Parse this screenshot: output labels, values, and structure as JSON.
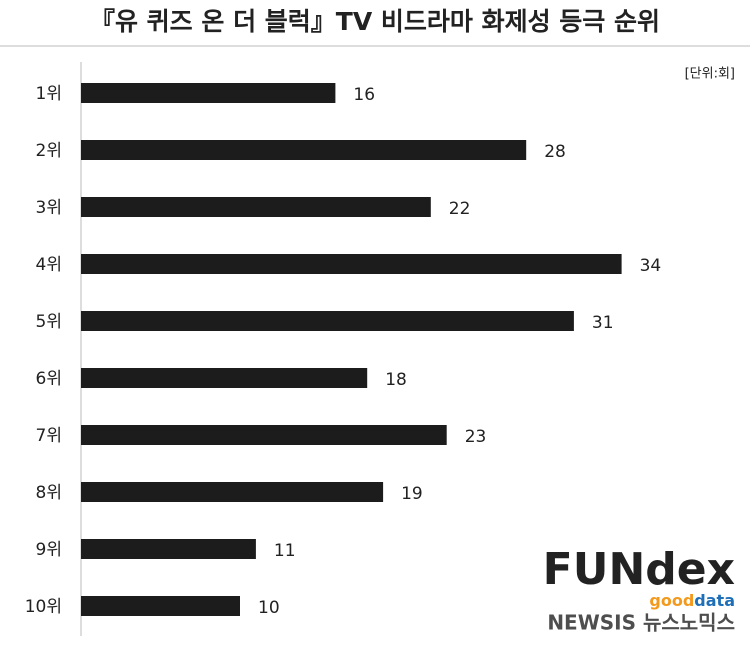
{
  "chart_data": {
    "type": "bar",
    "orientation": "horizontal",
    "title": "『유 퀴즈 온 더 블럭』TV 비드라마 화제성 등극 순위",
    "unit": "[단위:회]",
    "categories": [
      "1위",
      "2위",
      "3위",
      "4위",
      "5위",
      "6위",
      "7위",
      "8위",
      "9위",
      "10위"
    ],
    "values": [
      16,
      28,
      22,
      34,
      31,
      18,
      23,
      19,
      11,
      10
    ],
    "color": "#1c1c1c",
    "xlim": [
      0,
      40
    ]
  },
  "logo": {
    "name": "FUNdex",
    "sub_1": "good",
    "sub_2": "data"
  },
  "watermark": "NEWSIS 뉴스노믹스"
}
